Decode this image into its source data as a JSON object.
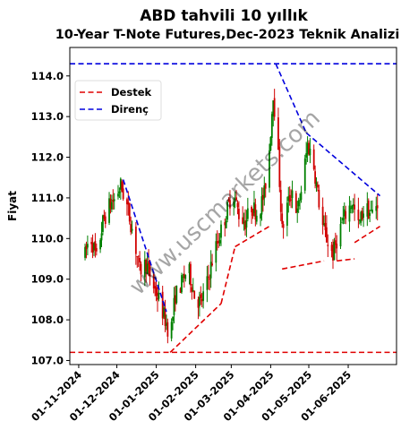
{
  "chart_data": {
    "type": "candlestick",
    "title": "ABD tahvili 10 yıllık",
    "subtitle": "10-Year T-Note Futures,Dec-2023 Teknik Analizi",
    "xlabel": "",
    "ylabel": "Fiyat",
    "ylim": [
      106.9,
      114.7
    ],
    "xlim": [
      "2024-10-25",
      "2025-07-09"
    ],
    "yticks": [
      107.0,
      108.0,
      109.0,
      110.0,
      111.0,
      112.0,
      113.0,
      114.0
    ],
    "ytick_labels": [
      "107.0",
      "108.0",
      "109.0",
      "110.0",
      "111.0",
      "112.0",
      "113.0",
      "114.0"
    ],
    "xticks": [
      "2024-11-01",
      "2024-12-01",
      "2025-01-01",
      "2025-02-01",
      "2025-03-01",
      "2025-04-01",
      "2025-05-01",
      "2025-06-01"
    ],
    "xtick_labels": [
      "01-11-2024",
      "01-12-2024",
      "01-01-2025",
      "01-02-2025",
      "01-03-2025",
      "01-04-2025",
      "01-05-2025",
      "01-06-2025"
    ],
    "grid": false,
    "legend_position": "upper-left",
    "up_color": "#008000",
    "down_color": "#d00000",
    "price_path": [
      [
        "2024-11-06",
        109.6
      ],
      [
        "2024-11-10",
        110.1
      ],
      [
        "2024-11-15",
        109.5
      ],
      [
        "2024-11-20",
        110.4
      ],
      [
        "2024-11-25",
        110.8
      ],
      [
        "2024-11-30",
        111.0
      ],
      [
        "2024-12-04",
        111.3
      ],
      [
        "2024-12-09",
        110.8
      ],
      [
        "2024-12-14",
        110.1
      ],
      [
        "2024-12-19",
        109.2
      ],
      [
        "2024-12-24",
        109.4
      ],
      [
        "2024-12-29",
        108.9
      ],
      [
        "2025-01-03",
        108.5
      ],
      [
        "2025-01-08",
        108.0
      ],
      [
        "2025-01-12",
        107.6
      ],
      [
        "2025-01-16",
        108.6
      ],
      [
        "2025-01-21",
        108.9
      ],
      [
        "2025-01-26",
        109.3
      ],
      [
        "2025-01-31",
        108.6
      ],
      [
        "2025-02-05",
        108.4
      ],
      [
        "2025-02-10",
        108.9
      ],
      [
        "2025-02-15",
        109.6
      ],
      [
        "2025-02-20",
        110.1
      ],
      [
        "2025-02-25",
        110.6
      ],
      [
        "2025-03-02",
        111.2
      ],
      [
        "2025-03-07",
        110.6
      ],
      [
        "2025-03-12",
        110.4
      ],
      [
        "2025-03-17",
        110.8
      ],
      [
        "2025-03-22",
        110.6
      ],
      [
        "2025-03-27",
        111.1
      ],
      [
        "2025-03-31",
        112.2
      ],
      [
        "2025-04-03",
        113.6
      ],
      [
        "2025-04-07",
        112.0
      ],
      [
        "2025-04-10",
        110.2
      ],
      [
        "2025-04-14",
        110.8
      ],
      [
        "2025-04-18",
        111.2
      ],
      [
        "2025-04-22",
        110.6
      ],
      [
        "2025-04-26",
        111.4
      ],
      [
        "2025-04-30",
        112.3
      ],
      [
        "2025-05-04",
        112.0
      ],
      [
        "2025-05-08",
        111.1
      ],
      [
        "2025-05-12",
        110.3
      ],
      [
        "2025-05-16",
        109.9
      ],
      [
        "2025-05-20",
        109.6
      ],
      [
        "2025-05-25",
        110.2
      ],
      [
        "2025-05-30",
        110.6
      ],
      [
        "2025-06-04",
        110.9
      ],
      [
        "2025-06-09",
        110.3
      ],
      [
        "2025-06-14",
        110.8
      ],
      [
        "2025-06-19",
        110.6
      ],
      [
        "2025-06-24",
        110.9
      ]
    ],
    "lines": [
      {
        "series": "Destek",
        "color": "#e00000",
        "points": [
          [
            "2024-10-25",
            107.2
          ],
          [
            "2025-07-09",
            107.2
          ]
        ]
      },
      {
        "series": "Direnç",
        "color": "#0000dd",
        "points": [
          [
            "2024-10-25",
            114.3
          ],
          [
            "2025-07-09",
            114.3
          ]
        ]
      },
      {
        "series": "Direnç",
        "color": "#0000dd",
        "points": [
          [
            "2024-12-06",
            111.45
          ],
          [
            "2025-01-09",
            108.2
          ]
        ]
      },
      {
        "series": "Direnç",
        "color": "#0000dd",
        "points": [
          [
            "2025-04-05",
            114.3
          ],
          [
            "2025-04-29",
            112.6
          ]
        ]
      },
      {
        "series": "Direnç",
        "color": "#0000dd",
        "points": [
          [
            "2025-04-29",
            112.6
          ],
          [
            "2025-06-26",
            111.05
          ]
        ]
      },
      {
        "series": "Destek",
        "color": "#e00000",
        "points": [
          [
            "2025-01-12",
            107.2
          ],
          [
            "2025-02-21",
            108.4
          ]
        ]
      },
      {
        "series": "Destek",
        "color": "#e00000",
        "points": [
          [
            "2025-02-21",
            108.4
          ],
          [
            "2025-03-04",
            109.8
          ]
        ]
      },
      {
        "series": "Destek",
        "color": "#e00000",
        "points": [
          [
            "2025-03-04",
            109.8
          ],
          [
            "2025-03-31",
            110.3
          ]
        ]
      },
      {
        "series": "Destek",
        "color": "#e00000",
        "points": [
          [
            "2025-04-10",
            109.25
          ],
          [
            "2025-05-13",
            109.45
          ]
        ]
      },
      {
        "series": "Destek",
        "color": "#e00000",
        "points": [
          [
            "2025-05-23",
            109.45
          ],
          [
            "2025-06-06",
            109.5
          ]
        ]
      },
      {
        "series": "Destek",
        "color": "#e00000",
        "points": [
          [
            "2025-06-06",
            109.9
          ],
          [
            "2025-06-26",
            110.3
          ]
        ]
      }
    ],
    "legend": [
      {
        "name": "Destek",
        "color": "#e00000"
      },
      {
        "name": "Direnç",
        "color": "#0000dd"
      }
    ]
  },
  "watermark": "www.uscmarkets.com"
}
